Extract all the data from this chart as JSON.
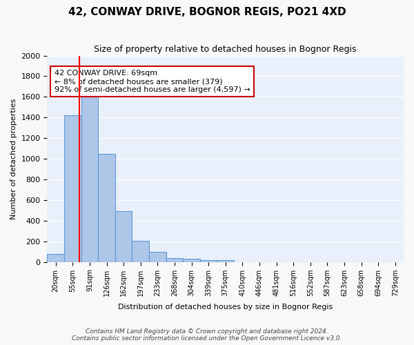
{
  "title": "42, CONWAY DRIVE, BOGNOR REGIS, PO21 4XD",
  "subtitle": "Size of property relative to detached houses in Bognor Regis",
  "xlabel": "Distribution of detached houses by size in Bognor Regis",
  "ylabel": "Number of detached properties",
  "bin_labels": [
    "20sqm",
    "55sqm",
    "91sqm",
    "126sqm",
    "162sqm",
    "197sqm",
    "233sqm",
    "268sqm",
    "304sqm",
    "339sqm",
    "375sqm",
    "410sqm",
    "446sqm",
    "481sqm",
    "516sqm",
    "552sqm",
    "587sqm",
    "623sqm",
    "658sqm",
    "694sqm",
    "729sqm"
  ],
  "bar_heights": [
    80,
    1420,
    1600,
    1050,
    490,
    205,
    100,
    40,
    28,
    20,
    15,
    0,
    0,
    0,
    0,
    0,
    0,
    0,
    0,
    0,
    0
  ],
  "bar_color": "#aec6e8",
  "bar_edge_color": "#5b9bd5",
  "background_color": "#eaf0fb",
  "grid_color": "#ffffff",
  "red_line_x": 1.4,
  "annotation_text": "42 CONWAY DRIVE: 69sqm\n← 8% of detached houses are smaller (379)\n92% of semi-detached houses are larger (4,597) →",
  "annotation_box_color": "#ffffff",
  "annotation_box_edge_color": "#cc0000",
  "ylim": [
    0,
    2000
  ],
  "yticks": [
    0,
    200,
    400,
    600,
    800,
    1000,
    1200,
    1400,
    1600,
    1800,
    2000
  ],
  "footer_line1": "Contains HM Land Registry data © Crown copyright and database right 2024.",
  "footer_line2": "Contains public sector information licensed under the Open Government Licence v3.0."
}
